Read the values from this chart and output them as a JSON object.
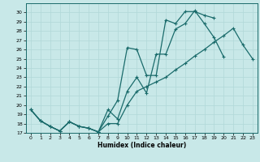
{
  "xlabel": "Humidex (Indice chaleur)",
  "bg_color": "#c8e8e8",
  "grid_color": "#b0d8d8",
  "line_color": "#1a6b6b",
  "xlim": [
    -0.5,
    23.5
  ],
  "ylim": [
    17,
    31
  ],
  "yticks": [
    17,
    18,
    19,
    20,
    21,
    22,
    23,
    24,
    25,
    26,
    27,
    28,
    29,
    30
  ],
  "xticks": [
    0,
    1,
    2,
    3,
    4,
    5,
    6,
    7,
    8,
    9,
    10,
    11,
    12,
    13,
    14,
    15,
    16,
    17,
    18,
    19,
    20,
    21,
    22,
    23
  ],
  "line1_x": [
    0,
    1,
    2,
    3,
    4,
    5,
    6,
    7,
    8,
    9,
    10,
    11,
    12,
    13,
    14,
    15,
    16,
    17,
    18,
    19
  ],
  "line1_y": [
    19.5,
    18.3,
    17.7,
    17.2,
    18.2,
    17.7,
    17.5,
    17.1,
    18.8,
    20.5,
    26.2,
    26.0,
    23.2,
    23.2,
    29.2,
    28.8,
    30.1,
    30.1,
    29.7,
    29.4
  ],
  "line2_x": [
    0,
    1,
    2,
    3,
    4,
    5,
    6,
    7,
    8,
    9,
    10,
    11,
    12,
    13,
    14,
    15,
    16,
    17,
    18,
    19,
    20
  ],
  "line2_y": [
    19.5,
    18.3,
    17.7,
    17.2,
    18.2,
    17.7,
    17.5,
    17.1,
    19.5,
    18.5,
    21.5,
    23.0,
    21.3,
    25.5,
    25.5,
    28.2,
    28.8,
    30.2,
    28.8,
    27.3,
    25.2
  ],
  "line3_x": [
    0,
    1,
    2,
    3,
    4,
    5,
    6,
    7,
    8,
    9,
    10,
    11,
    12,
    13,
    14,
    15,
    16,
    17,
    18,
    19,
    20,
    21,
    22,
    23
  ],
  "line3_y": [
    19.5,
    18.3,
    17.7,
    17.2,
    18.2,
    17.7,
    17.5,
    17.1,
    18.0,
    18.0,
    20.0,
    21.5,
    22.0,
    22.5,
    23.0,
    23.8,
    24.5,
    25.3,
    26.0,
    26.8,
    27.5,
    28.3,
    26.5,
    25.0
  ]
}
